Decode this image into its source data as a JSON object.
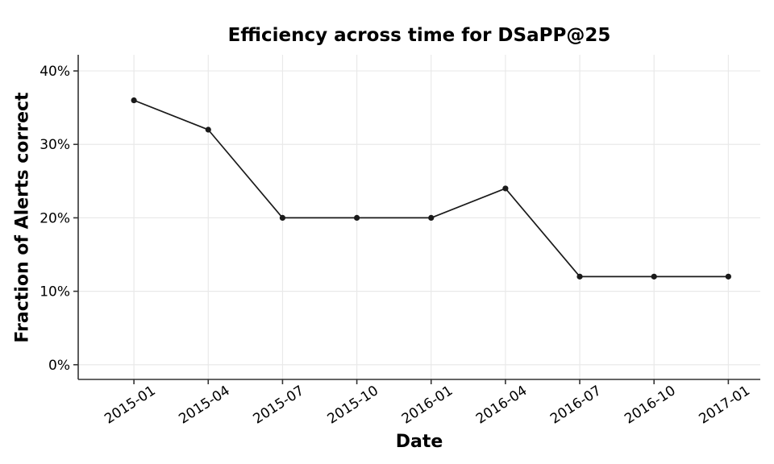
{
  "chart_data": {
    "type": "line",
    "title": "Efficiency across time for DSaPP@25",
    "xlabel": "Date",
    "ylabel": "Fraction of Alerts correct",
    "categories": [
      "2015-01",
      "2015-04",
      "2015-07",
      "2015-10",
      "2016-01",
      "2016-04",
      "2016-07",
      "2016-10",
      "2017-01"
    ],
    "series": [
      {
        "name": "DSaPP@25",
        "values": [
          36,
          32,
          20,
          20,
          20,
          24,
          12,
          12,
          12
        ],
        "unit": "percent"
      }
    ],
    "yticks": [
      {
        "label": "0%",
        "value": 0
      },
      {
        "label": "10%",
        "value": 10
      },
      {
        "label": "20%",
        "value": 20
      },
      {
        "label": "30%",
        "value": 30
      },
      {
        "label": "40%",
        "value": 40
      }
    ],
    "xlim_index": [
      -0.75,
      8.43
    ],
    "ylim_percent": [
      -2,
      42.2
    ],
    "grid": true,
    "legend": "none",
    "colors": {
      "line": "#1a1a1a",
      "marker": "#1a1a1a",
      "grid": "#e9e9e9",
      "spine": "#333333",
      "text": "#000000",
      "background": "#ffffff"
    }
  }
}
